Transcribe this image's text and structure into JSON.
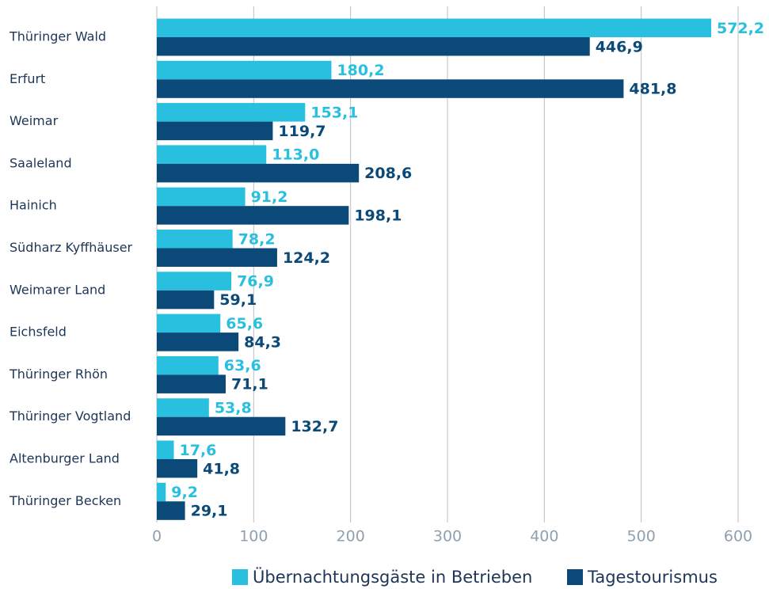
{
  "chart_data": {
    "type": "hbar",
    "categories": [
      "Thüringer Wald",
      "Erfurt",
      "Weimar",
      "Saaleland",
      "Hainich",
      "Südharz Kyffhäuser",
      "Weimarer Land",
      "Eichsfeld",
      "Thüringer Rhön",
      "Thüringer Vogtland",
      "Altenburger Land",
      "Thüringer Becken"
    ],
    "series": [
      {
        "name": "Übernachtungsgäste in Betrieben",
        "color": "#29c0e0",
        "values": [
          572.2,
          180.2,
          153.1,
          113.0,
          91.2,
          78.2,
          76.9,
          65.6,
          63.6,
          53.8,
          17.6,
          9.2
        ],
        "value_labels": [
          "572,2",
          "180,2",
          "153,1",
          "113,0",
          "91,2",
          "78,2",
          "76,9",
          "65,6",
          "63,6",
          "53,8",
          "17,6",
          "9,2"
        ]
      },
      {
        "name": "Tagestourismus",
        "color": "#0b4a78",
        "values": [
          446.9,
          481.8,
          119.7,
          208.6,
          198.1,
          124.2,
          59.1,
          84.3,
          71.1,
          132.7,
          41.8,
          29.1
        ],
        "value_labels": [
          "446,9",
          "481,8",
          "119,7",
          "208,6",
          "198,1",
          "124,2",
          "59,1",
          "84,3",
          "71,1",
          "132,7",
          "41,8",
          "29,1"
        ]
      }
    ],
    "xlim": [
      0,
      600
    ],
    "xticks": [
      0,
      100,
      200,
      300,
      400,
      500,
      600
    ],
    "grid": true,
    "legend": "bottom"
  }
}
